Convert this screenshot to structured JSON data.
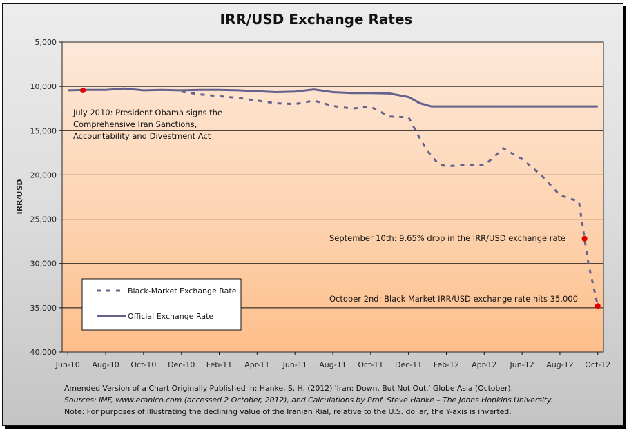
{
  "chart_data": {
    "type": "line",
    "title": "IRR/USD Exchange Rates",
    "xlabel": "",
    "ylabel": "IRR/USD",
    "y_inverted": true,
    "ylim": [
      5000,
      40000
    ],
    "y_ticks": [
      5000,
      10000,
      15000,
      20000,
      25000,
      30000,
      35000,
      40000
    ],
    "y_tick_labels": [
      "5,000",
      "10,000",
      "15,000",
      "20,000",
      "25,000",
      "30,000",
      "35,000",
      "40,000"
    ],
    "x_range_months": [
      -0.3,
      28.3
    ],
    "x_tick_labels": [
      "Jun-10",
      "Aug-10",
      "Oct-10",
      "Dec-10",
      "Feb-11",
      "Apr-11",
      "Jun-11",
      "Aug-11",
      "Oct-11",
      "Dec-11",
      "Feb-12",
      "Apr-12",
      "Jun-12",
      "Aug-12",
      "Oct-12"
    ],
    "x_unit_note": "x values are months since Jun-2010",
    "grid": "horizontal",
    "legend_position": "bottom-left",
    "series": [
      {
        "name": "Black-Market Exchange Rate",
        "style": "dashed",
        "color": "#64628c",
        "x": [
          6,
          7,
          8,
          9,
          10,
          11,
          12,
          13,
          14,
          15,
          16,
          17,
          18,
          18.5,
          19,
          19.6,
          20,
          21,
          22,
          22.5,
          23,
          24,
          25,
          26,
          27,
          27.3,
          27.5,
          28
        ],
        "y": [
          10600,
          10900,
          11100,
          11300,
          11600,
          11900,
          12000,
          11600,
          12200,
          12500,
          12300,
          13400,
          13500,
          15500,
          17300,
          18800,
          19000,
          18900,
          18900,
          18000,
          17000,
          18200,
          20000,
          22300,
          23000,
          27200,
          30000,
          34800
        ]
      },
      {
        "name": "Official Exchange Rate",
        "style": "solid",
        "color": "#64628c",
        "x": [
          0,
          1,
          2,
          3,
          4,
          5,
          6,
          7,
          8,
          9,
          10,
          11,
          12,
          13,
          14,
          15,
          16,
          17,
          18,
          18.6,
          19.2,
          20,
          22,
          24,
          26,
          28
        ],
        "y": [
          10450,
          10400,
          10400,
          10250,
          10450,
          10400,
          10450,
          10400,
          10400,
          10450,
          10550,
          10650,
          10600,
          10350,
          10650,
          10750,
          10750,
          10800,
          11200,
          11900,
          12260,
          12260,
          12260,
          12260,
          12260,
          12260
        ]
      }
    ],
    "highlighted_points": [
      {
        "x": 0.8,
        "y": 10450,
        "color": "#e00000"
      },
      {
        "x": 27.3,
        "y": 27200,
        "color": "#e00000"
      },
      {
        "x": 28,
        "y": 34800,
        "color": "#e00000"
      }
    ],
    "annotations": [
      {
        "lines": [
          "July 2010: President Obama signs the",
          "Comprehensive Iran Sanctions,",
          "Accountability and Divestment Act"
        ]
      },
      {
        "lines": [
          "September 10th: 9.65% drop in the IRR/USD exchange rate"
        ]
      },
      {
        "lines": [
          "October 2nd: Black Market IRR/USD exchange rate hits 35,000"
        ]
      }
    ]
  },
  "footer": {
    "line1": "Amended Version of a Chart Originally Published in: Hanke, S. H. (2012) 'Iran: Down, But Not Out.' Globe Asia (October).",
    "line2": "Sources: IMF,  www.eranico.com (accessed 2 October, 2012), and Calculations by Prof. Steve Hanke – The Johns Hopkins University.",
    "line3": "Note: For purposes of illustrating the declining value of the Iranian Rial, relative to the U.S. dollar, the Y-axis is inverted."
  },
  "colors": {
    "series": "#64628c",
    "highlight": "#e00000",
    "plot_top": "#fde8d8",
    "plot_bottom": "#fdbe8a"
  }
}
